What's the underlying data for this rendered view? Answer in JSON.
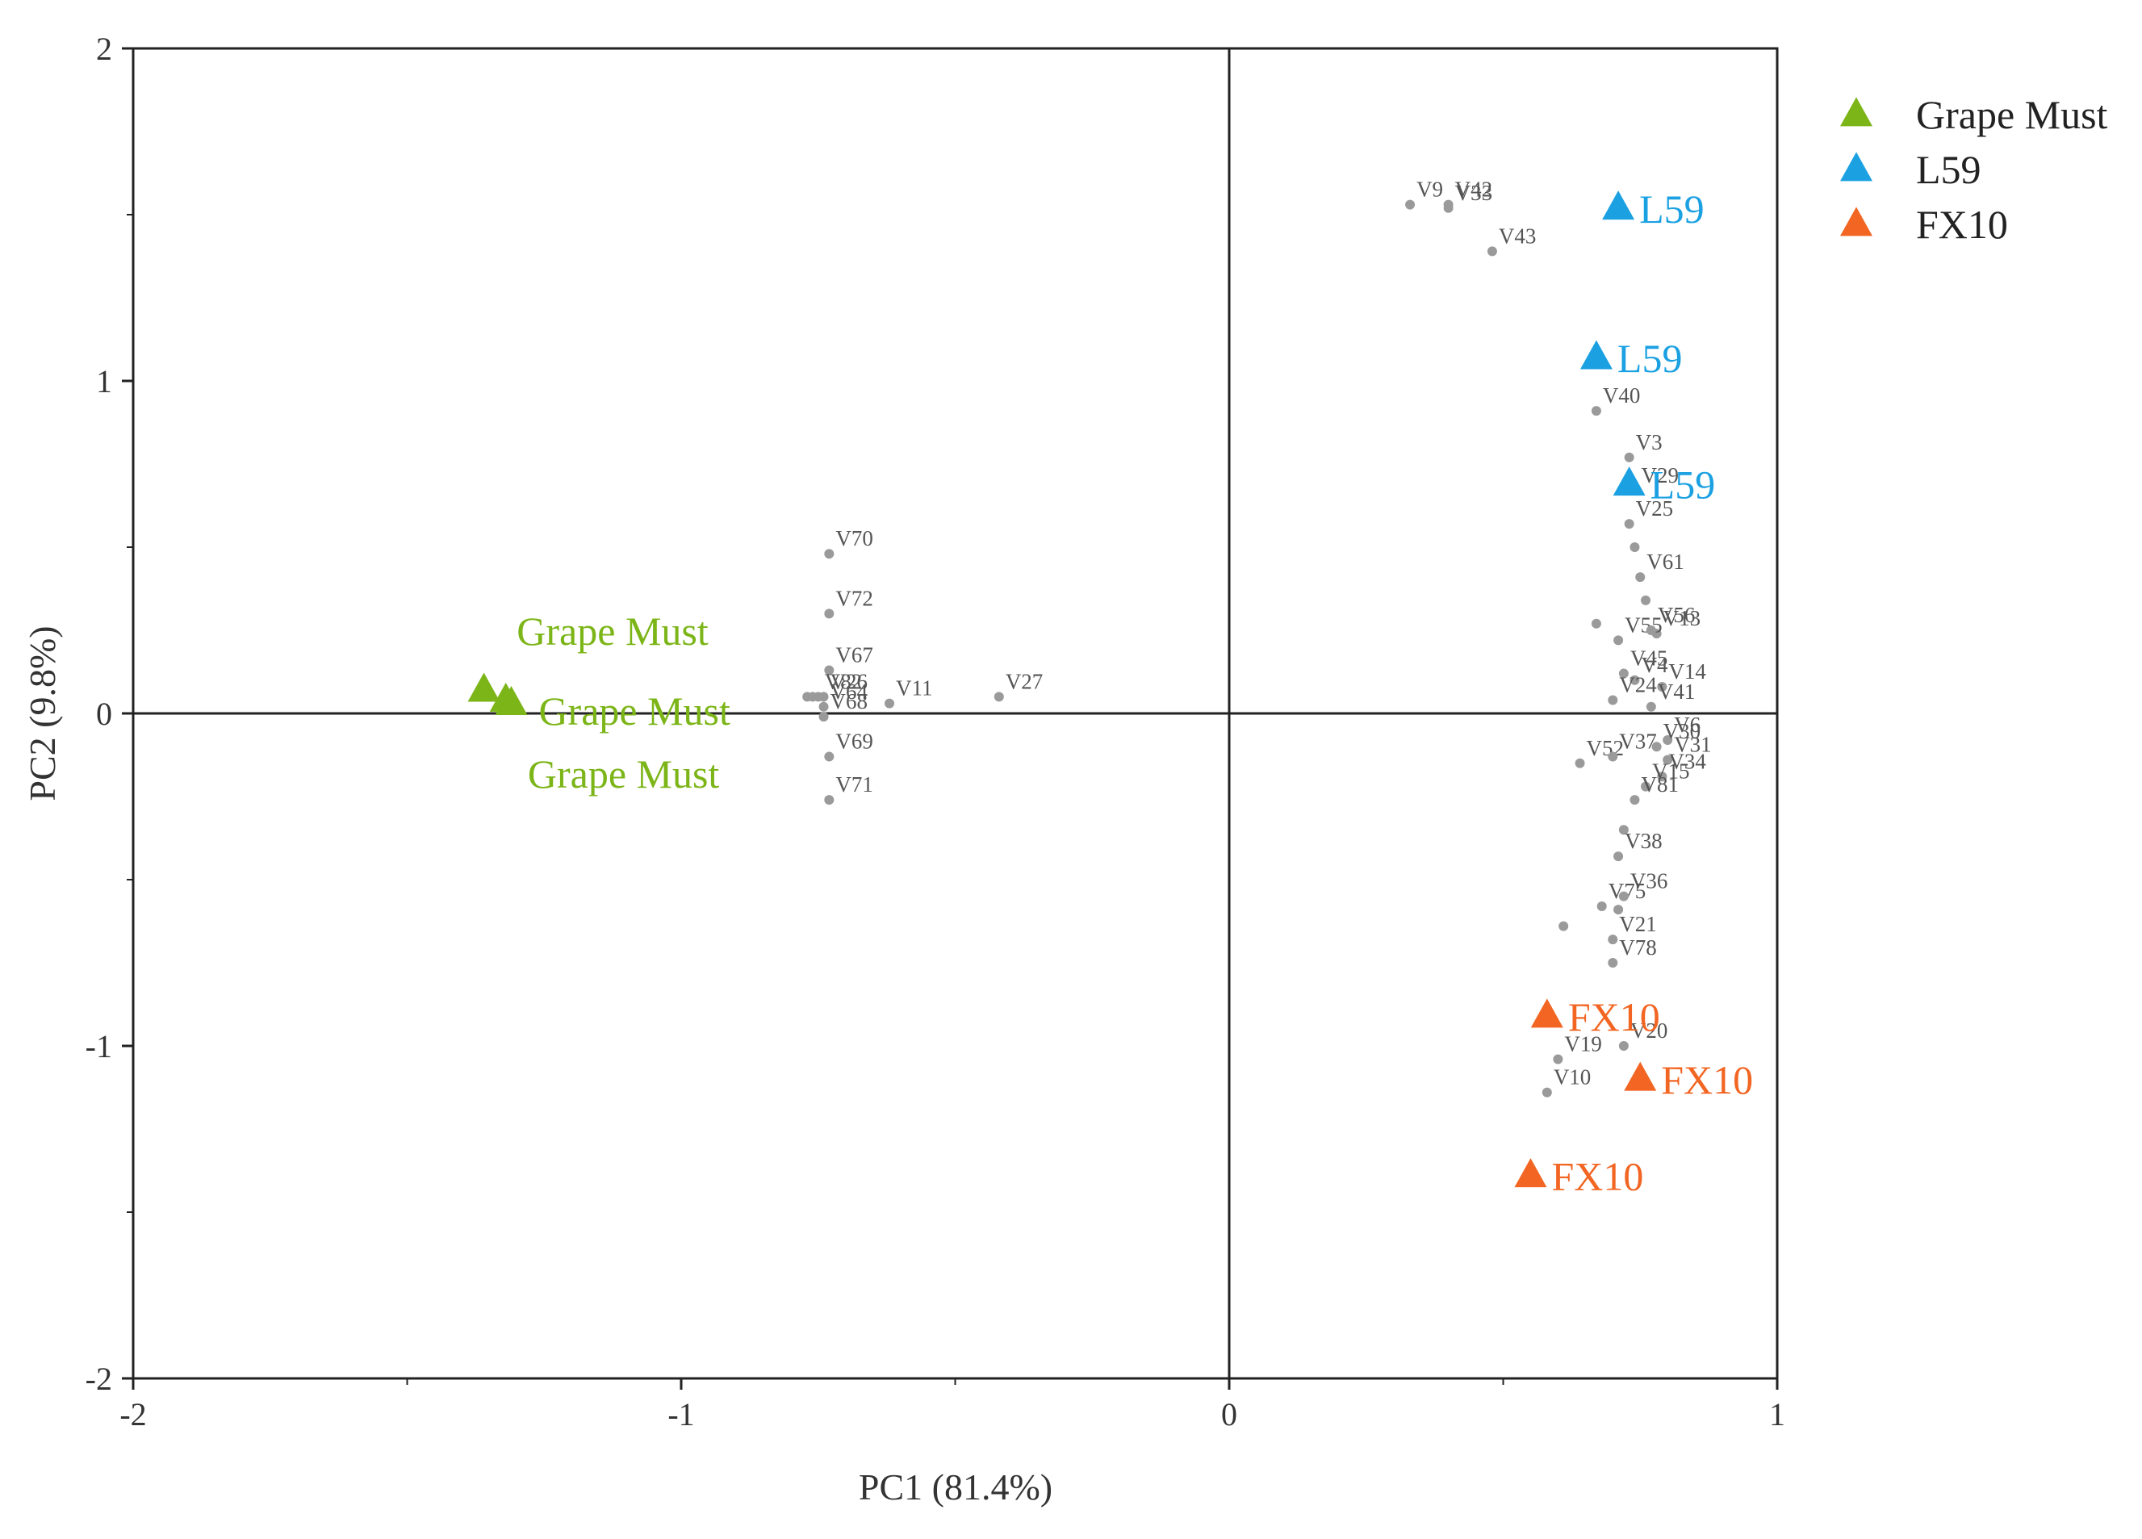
{
  "chart_data": {
    "type": "scatter",
    "title": "",
    "xlabel": "PC1 (81.4%)",
    "ylabel": "PC2 (9.8%)",
    "xlim": [
      -2,
      1
    ],
    "ylim": [
      -2,
      2
    ],
    "xticks": [
      "-2",
      "-1",
      "0",
      "1"
    ],
    "yticks": [
      "-2",
      "-1",
      "0",
      "1",
      "2"
    ],
    "legend_position": "top-right, outside plot",
    "legend": [
      {
        "name": "Grape Must",
        "color": "#7cb518"
      },
      {
        "name": "L59",
        "color": "#1ba1e2"
      },
      {
        "name": "FX10",
        "color": "#f26522"
      }
    ],
    "sample_series": [
      {
        "name": "Grape Must",
        "color": "#7cb518",
        "points": [
          {
            "x": -1.36,
            "y": 0.07,
            "label": ""
          },
          {
            "x": -1.32,
            "y": 0.04,
            "label": ""
          },
          {
            "x": -1.31,
            "y": 0.03,
            "label": ""
          }
        ],
        "labels": [
          {
            "text": "Grape Must",
            "x": -1.3,
            "y": 0.25
          },
          {
            "text": "Grape Must",
            "x": -1.26,
            "y": 0.01
          },
          {
            "text": "Grape Must",
            "x": -1.28,
            "y": -0.18
          }
        ]
      },
      {
        "name": "L59",
        "color": "#1ba1e2",
        "points": [
          {
            "x": 0.71,
            "y": 1.52,
            "label": "L59"
          },
          {
            "x": 0.67,
            "y": 1.07,
            "label": "L59"
          },
          {
            "x": 0.73,
            "y": 0.69,
            "label": "L59"
          }
        ]
      },
      {
        "name": "FX10",
        "color": "#f26522",
        "points": [
          {
            "x": 0.58,
            "y": -0.91,
            "label": "FX10"
          },
          {
            "x": 0.75,
            "y": -1.1,
            "label": "FX10"
          },
          {
            "x": 0.55,
            "y": -1.39,
            "label": "FX10"
          }
        ]
      }
    ],
    "variables": [
      {
        "name": "V9",
        "x": 0.33,
        "y": 1.53
      },
      {
        "name": "V42",
        "x": 0.4,
        "y": 1.53
      },
      {
        "name": "V33",
        "x": 0.4,
        "y": 1.52
      },
      {
        "name": "V43",
        "x": 0.48,
        "y": 1.39
      },
      {
        "name": "V40",
        "x": 0.67,
        "y": 0.91
      },
      {
        "name": "V3",
        "x": 0.73,
        "y": 0.77
      },
      {
        "name": "V29",
        "x": 0.74,
        "y": 0.67
      },
      {
        "name": "V25",
        "x": 0.73,
        "y": 0.57
      },
      {
        "name": "",
        "x": 0.74,
        "y": 0.5
      },
      {
        "name": "V61",
        "x": 0.75,
        "y": 0.41
      },
      {
        "name": "",
        "x": 0.76,
        "y": 0.34
      },
      {
        "name": "",
        "x": 0.67,
        "y": 0.27
      },
      {
        "name": "V13",
        "x": 0.78,
        "y": 0.24
      },
      {
        "name": "V55",
        "x": 0.71,
        "y": 0.22
      },
      {
        "name": "V56",
        "x": 0.77,
        "y": 0.25
      },
      {
        "name": "V45",
        "x": 0.72,
        "y": 0.12
      },
      {
        "name": "V14",
        "x": 0.79,
        "y": 0.08
      },
      {
        "name": "V4",
        "x": 0.74,
        "y": 0.1
      },
      {
        "name": "V24",
        "x": 0.7,
        "y": 0.04
      },
      {
        "name": "V41",
        "x": 0.77,
        "y": 0.02
      },
      {
        "name": "V6",
        "x": 0.8,
        "y": -0.08
      },
      {
        "name": "V30",
        "x": 0.78,
        "y": -0.1
      },
      {
        "name": "V52",
        "x": 0.64,
        "y": -0.15
      },
      {
        "name": "V37",
        "x": 0.7,
        "y": -0.13
      },
      {
        "name": "V31",
        "x": 0.8,
        "y": -0.14
      },
      {
        "name": "V34",
        "x": 0.79,
        "y": -0.19
      },
      {
        "name": "V15",
        "x": 0.76,
        "y": -0.22
      },
      {
        "name": "V81",
        "x": 0.74,
        "y": -0.26
      },
      {
        "name": "",
        "x": 0.72,
        "y": -0.35
      },
      {
        "name": "V38",
        "x": 0.71,
        "y": -0.43
      },
      {
        "name": "V75",
        "x": 0.68,
        "y": -0.58
      },
      {
        "name": "",
        "x": 0.71,
        "y": -0.59
      },
      {
        "name": "V36",
        "x": 0.72,
        "y": -0.55
      },
      {
        "name": "",
        "x": 0.61,
        "y": -0.64
      },
      {
        "name": "V21",
        "x": 0.7,
        "y": -0.68
      },
      {
        "name": "V78",
        "x": 0.7,
        "y": -0.75
      },
      {
        "name": "V19",
        "x": 0.6,
        "y": -1.04
      },
      {
        "name": "V20",
        "x": 0.72,
        "y": -1.0
      },
      {
        "name": "V10",
        "x": 0.58,
        "y": -1.14
      },
      {
        "name": "V70",
        "x": -0.73,
        "y": 0.48
      },
      {
        "name": "V72",
        "x": -0.73,
        "y": 0.3
      },
      {
        "name": "V67",
        "x": -0.73,
        "y": 0.13
      },
      {
        "name": "",
        "x": -0.77,
        "y": 0.05
      },
      {
        "name": "",
        "x": -0.76,
        "y": 0.05
      },
      {
        "name": "V82",
        "x": -0.75,
        "y": 0.05
      },
      {
        "name": "V26",
        "x": -0.74,
        "y": 0.05
      },
      {
        "name": "V64",
        "x": -0.74,
        "y": 0.02
      },
      {
        "name": "V68",
        "x": -0.74,
        "y": -0.01
      },
      {
        "name": "V11",
        "x": -0.62,
        "y": 0.03
      },
      {
        "name": "V27",
        "x": -0.42,
        "y": 0.05
      },
      {
        "name": "V69",
        "x": -0.73,
        "y": -0.13
      },
      {
        "name": "V71",
        "x": -0.73,
        "y": -0.26
      }
    ]
  }
}
